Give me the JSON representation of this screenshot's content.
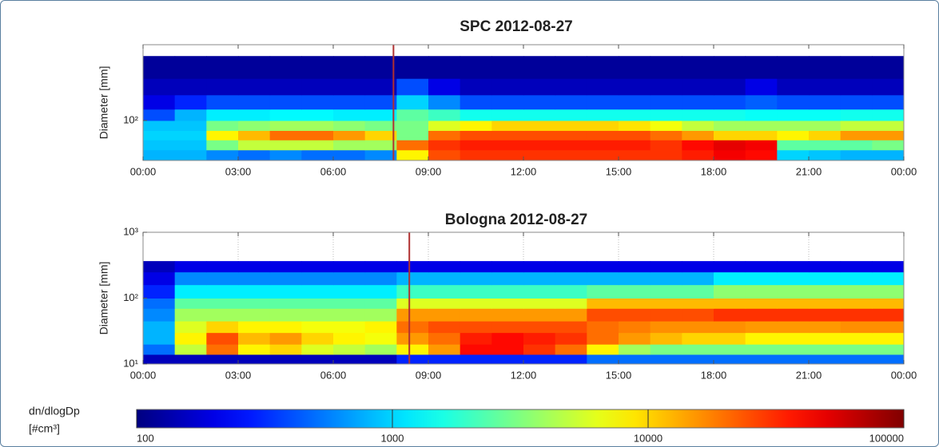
{
  "chart_data": [
    {
      "type": "heatmap",
      "title": "SPC 2012-08-27",
      "ylabel": "Diameter [mm]",
      "log_y": true,
      "grid": false,
      "xlim": [
        0,
        24
      ],
      "xticks": [
        {
          "value": 0,
          "label": "00:00"
        },
        {
          "value": 3,
          "label": "03:00"
        },
        {
          "value": 6,
          "label": "06:00"
        },
        {
          "value": 9,
          "label": "09:00"
        },
        {
          "value": 12,
          "label": "12:00"
        },
        {
          "value": 15,
          "label": "15:00"
        },
        {
          "value": 18,
          "label": "18:00"
        },
        {
          "value": 21,
          "label": "21:00"
        },
        {
          "value": 24,
          "label": "00:00"
        }
      ],
      "ylim": [
        24,
        1500
      ],
      "yticks": [
        {
          "value": 100,
          "label": "10²"
        }
      ],
      "vline": 7.9,
      "vline_color": "#b03030",
      "x_bins": [
        0,
        1,
        2,
        3,
        4,
        5,
        6,
        7,
        8,
        9,
        10,
        11,
        12,
        13,
        14,
        15,
        16,
        17,
        18,
        19,
        20,
        21,
        22,
        23,
        24
      ],
      "y_bins": [
        24,
        35,
        50,
        70,
        100,
        150,
        250,
        450,
        1000
      ],
      "z": [
        [
          800,
          800,
          600,
          500,
          600,
          500,
          500,
          600,
          8000,
          25000,
          30000,
          30000,
          30000,
          30000,
          30000,
          30000,
          30000,
          35000,
          45000,
          40000,
          1000,
          900,
          800,
          800
        ],
        [
          900,
          900,
          3000,
          5000,
          5000,
          5000,
          4000,
          4000,
          20000,
          30000,
          35000,
          35000,
          35000,
          35000,
          35000,
          35000,
          30000,
          40000,
          50000,
          45000,
          2500,
          2500,
          2500,
          3000
        ],
        [
          1000,
          1000,
          8000,
          12000,
          20000,
          20000,
          15000,
          10000,
          3000,
          20000,
          25000,
          25000,
          25000,
          25000,
          25000,
          25000,
          20000,
          15000,
          10000,
          10000,
          8000,
          10000,
          15000,
          15000
        ],
        [
          900,
          900,
          3000,
          3500,
          4000,
          4000,
          3500,
          3000,
          3000,
          6000,
          8000,
          10000,
          10000,
          10000,
          10000,
          9000,
          7000,
          5000,
          4000,
          4000,
          4000,
          4000,
          5000,
          5000
        ],
        [
          400,
          800,
          1200,
          1200,
          1300,
          1300,
          1200,
          1200,
          2500,
          2000,
          1500,
          1500,
          1500,
          1500,
          1500,
          1500,
          1500,
          1500,
          1500,
          1400,
          1400,
          1400,
          1500,
          1500
        ],
        [
          200,
          300,
          400,
          400,
          400,
          400,
          400,
          400,
          1000,
          600,
          400,
          400,
          400,
          400,
          400,
          400,
          400,
          400,
          400,
          450,
          400,
          400,
          400,
          400
        ],
        [
          150,
          150,
          150,
          150,
          150,
          150,
          150,
          150,
          400,
          200,
          150,
          150,
          150,
          150,
          150,
          150,
          150,
          150,
          150,
          200,
          150,
          150,
          150,
          150
        ],
        [
          120,
          120,
          120,
          120,
          120,
          120,
          120,
          120,
          120,
          120,
          120,
          120,
          120,
          120,
          120,
          120,
          120,
          120,
          120,
          120,
          120,
          120,
          120,
          120
        ]
      ]
    },
    {
      "type": "heatmap",
      "title": "Bologna 2012-08-27",
      "ylabel": "Diameter [mm]",
      "log_y": true,
      "grid": true,
      "xlim": [
        0,
        24
      ],
      "xticks": [
        {
          "value": 0,
          "label": "00:00"
        },
        {
          "value": 3,
          "label": "03:00"
        },
        {
          "value": 6,
          "label": "06:00"
        },
        {
          "value": 9,
          "label": "09:00"
        },
        {
          "value": 12,
          "label": "12:00"
        },
        {
          "value": 15,
          "label": "15:00"
        },
        {
          "value": 18,
          "label": "18:00"
        },
        {
          "value": 21,
          "label": "21:00"
        },
        {
          "value": 24,
          "label": "00:00"
        }
      ],
      "ylim": [
        10,
        1000
      ],
      "yticks": [
        {
          "value": 10,
          "label": "10¹"
        },
        {
          "value": 100,
          "label": "10²"
        },
        {
          "value": 1000,
          "label": "10³"
        }
      ],
      "vline": 8.4,
      "vline_color": "#b03030",
      "x_bins": [
        0,
        1,
        2,
        3,
        4,
        5,
        6,
        7,
        8,
        9,
        10,
        11,
        12,
        13,
        14,
        15,
        16,
        17,
        18,
        19,
        20,
        21,
        22,
        23,
        24
      ],
      "y_bins": [
        10,
        14,
        20,
        30,
        45,
        70,
        100,
        160,
        250,
        365
      ],
      "z": [
        [
          150,
          150,
          150,
          150,
          150,
          150,
          150,
          150,
          300,
          300,
          300,
          300,
          300,
          300,
          500,
          500,
          500,
          500,
          500,
          500,
          500,
          500,
          500,
          500
        ],
        [
          500,
          5000,
          20000,
          8000,
          10000,
          6000,
          5000,
          4000,
          8000,
          15000,
          40000,
          40000,
          30000,
          20000,
          8000,
          4000,
          3000,
          3000,
          3000,
          3000,
          3000,
          3000,
          3000,
          3000
        ],
        [
          800,
          8000,
          25000,
          12000,
          15000,
          10000,
          8000,
          7000,
          15000,
          20000,
          35000,
          40000,
          35000,
          30000,
          20000,
          15000,
          12000,
          10000,
          10000,
          8000,
          8000,
          8000,
          8000,
          8000
        ],
        [
          800,
          6000,
          10000,
          8000,
          8000,
          7000,
          7000,
          8000,
          20000,
          25000,
          25000,
          25000,
          25000,
          25000,
          20000,
          18000,
          16000,
          16000,
          16000,
          15000,
          15000,
          15000,
          16000,
          16000
        ],
        [
          600,
          4000,
          4000,
          4000,
          4000,
          4000,
          4000,
          4000,
          15000,
          15000,
          15000,
          15000,
          15000,
          15000,
          25000,
          25000,
          25000,
          25000,
          30000,
          30000,
          30000,
          30000,
          30000,
          30000
        ],
        [
          500,
          2500,
          2500,
          2500,
          2500,
          2500,
          2500,
          2500,
          6000,
          6000,
          6000,
          6000,
          6000,
          6000,
          12000,
          12000,
          12000,
          12000,
          12000,
          12000,
          12000,
          12000,
          12000,
          12000
        ],
        [
          300,
          1200,
          1200,
          1200,
          1200,
          1200,
          1200,
          1200,
          2000,
          2000,
          2000,
          2000,
          2000,
          2000,
          2500,
          2500,
          2500,
          2500,
          3500,
          3500,
          3500,
          3500,
          3500,
          3500
        ],
        [
          200,
          600,
          600,
          600,
          600,
          600,
          600,
          600,
          800,
          800,
          800,
          800,
          800,
          800,
          800,
          800,
          800,
          800,
          1200,
          1200,
          1200,
          1200,
          1200,
          1200
        ],
        [
          150,
          200,
          200,
          200,
          200,
          200,
          200,
          200,
          200,
          200,
          200,
          200,
          200,
          200,
          200,
          200,
          200,
          200,
          200,
          200,
          200,
          200,
          200,
          200
        ]
      ]
    },
    {
      "type": "colorbar",
      "label": [
        "dn/dlogDp",
        "[#cm³]"
      ],
      "colormap": "jet",
      "log_scale": true,
      "xlim": [
        100,
        100000
      ],
      "xticks": [
        100,
        1000,
        10000,
        100000
      ]
    }
  ]
}
